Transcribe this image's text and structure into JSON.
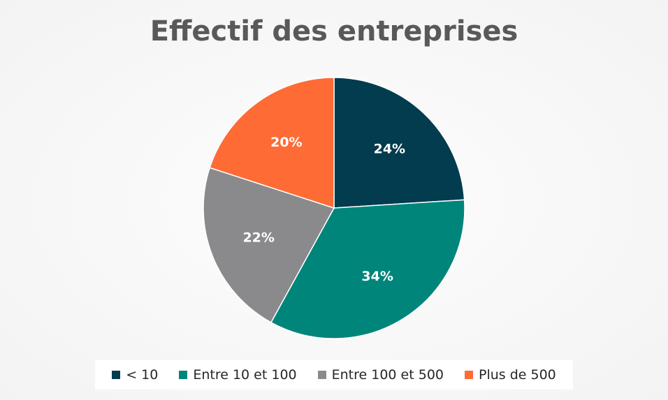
{
  "chart_data": {
    "type": "pie",
    "title": "Effectif des entreprises",
    "series": [
      {
        "name": "< 10",
        "value": 24,
        "label": "24%",
        "color": "#033b4f"
      },
      {
        "name": "Entre 10 et 100",
        "value": 34,
        "label": "34%",
        "color": "#00857b"
      },
      {
        "name": "Entre 100 et 500",
        "value": 22,
        "label": "22%",
        "color": "#8a8a8c"
      },
      {
        "name": "Plus de 500",
        "value": 20,
        "label": "20%",
        "color": "#ff6b35"
      }
    ],
    "legend_position": "bottom"
  }
}
